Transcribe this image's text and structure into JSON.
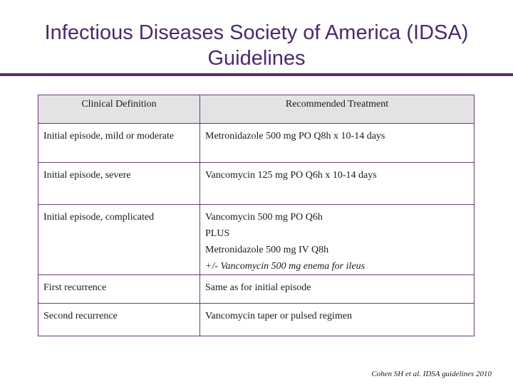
{
  "slide": {
    "title_line1": "Infectious Diseases Society of America (IDSA)",
    "title_line2": "Guidelines",
    "citation": "Cohen SH et al. IDSA guidelines 2010"
  },
  "table": {
    "headers": [
      "Clinical Definition",
      "Recommended Treatment"
    ],
    "rows": [
      {
        "definition": "Initial episode, mild or moderate",
        "treatment": [
          "Metronidazole 500 mg PO Q8h x 10-14 days"
        ]
      },
      {
        "definition": "Initial episode, severe",
        "treatment": [
          "Vancomycin 125 mg PO Q6h x 10-14 days"
        ]
      },
      {
        "definition": "Initial episode, complicated",
        "treatment": [
          "Vancomycin 500 mg PO Q6h",
          "PLUS",
          "Metronidazole 500 mg IV Q8h",
          "+/- Vancomycin 500 mg enema for ileus"
        ]
      },
      {
        "definition": "First recurrence",
        "treatment": [
          "Same as for initial episode"
        ]
      },
      {
        "definition": "Second recurrence",
        "treatment": [
          "Vancomycin taper or pulsed regimen"
        ]
      }
    ]
  }
}
